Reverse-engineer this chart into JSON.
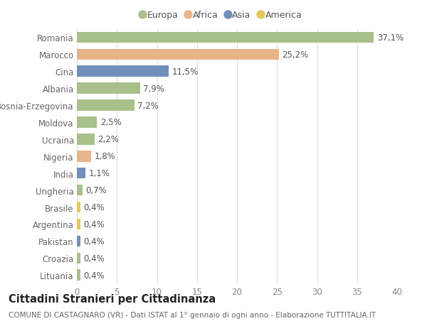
{
  "countries": [
    "Romania",
    "Marocco",
    "Cina",
    "Albania",
    "Bosnia-Erzegovina",
    "Moldova",
    "Ucraina",
    "Nigeria",
    "India",
    "Ungheria",
    "Brasile",
    "Argentina",
    "Pakistan",
    "Croazia",
    "Lituania"
  ],
  "values": [
    37.1,
    25.2,
    11.5,
    7.9,
    7.2,
    2.5,
    2.2,
    1.8,
    1.1,
    0.7,
    0.4,
    0.4,
    0.4,
    0.4,
    0.4
  ],
  "labels": [
    "37,1%",
    "25,2%",
    "11,5%",
    "7,9%",
    "7,2%",
    "2,5%",
    "2,2%",
    "1,8%",
    "1,1%",
    "0,7%",
    "0,4%",
    "0,4%",
    "0,4%",
    "0,4%",
    "0,4%"
  ],
  "continents": [
    "Europa",
    "Africa",
    "Asia",
    "Europa",
    "Europa",
    "Europa",
    "Europa",
    "Africa",
    "Asia",
    "Europa",
    "America",
    "America",
    "Asia",
    "Europa",
    "Europa"
  ],
  "continent_colors": {
    "Europa": "#a8c08a",
    "Africa": "#e8b48a",
    "Asia": "#7090bb",
    "America": "#e8c85a"
  },
  "legend_labels": [
    "Europa",
    "Africa",
    "Asia",
    "America"
  ],
  "legend_colors": [
    "#a8c08a",
    "#e8b48a",
    "#7090bb",
    "#e8c85a"
  ],
  "title": "Cittadini Stranieri per Cittadinanza",
  "subtitle": "COMUNE DI CASTAGNARO (VR) - Dati ISTAT al 1° gennaio di ogni anno - Elaborazione TUTTITALIA.IT",
  "xlim": [
    0,
    40
  ],
  "xticks": [
    0,
    5,
    10,
    15,
    20,
    25,
    30,
    35,
    40
  ],
  "bg_color": "#ffffff",
  "grid_color": "#e0e0e0",
  "bar_height": 0.65,
  "label_fontsize": 8.5,
  "tick_fontsize": 8.5,
  "title_fontsize": 10.5,
  "subtitle_fontsize": 7.5
}
